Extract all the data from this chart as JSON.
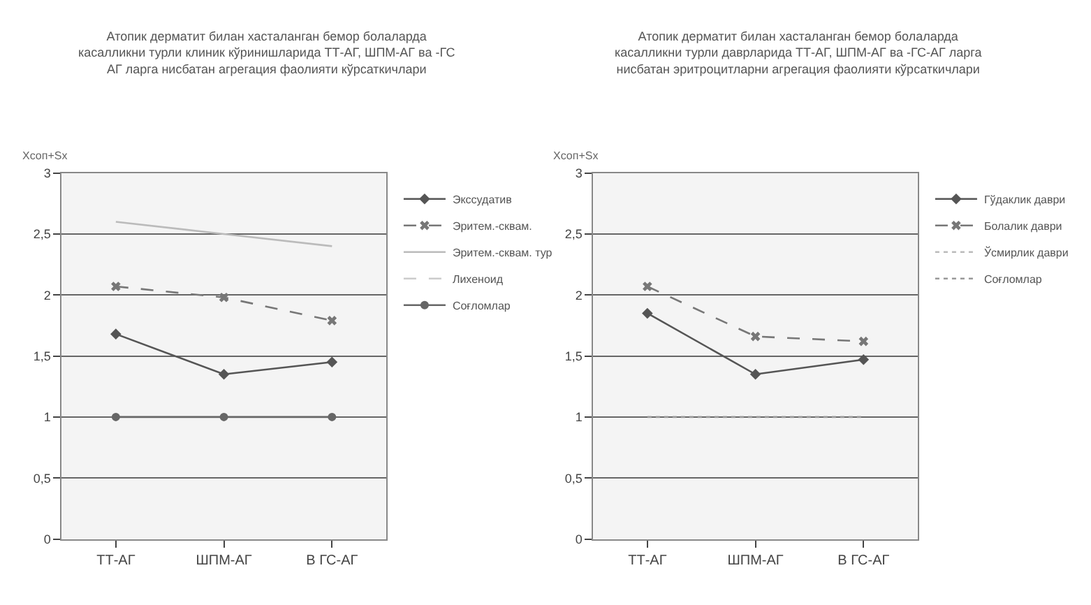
{
  "chart_data": [
    {
      "type": "line",
      "title": "Атопик дерматит билан хасталанган бемор болаларда\nкасалликни турли клиник кўринишларида ТТ-АГ, ШПМ-АГ ва -ГС\nАГ ларга нисбатан агрегация фаолияти кўрсаткичлари",
      "ylabel": "Хсоп+Sx",
      "categories": [
        "ТТ-АГ",
        "ШПМ-АГ",
        "В ГС-АГ"
      ],
      "ylim": [
        0,
        3
      ],
      "yticks": [
        0,
        {
          "value": 0.5,
          "label": "0,5"
        },
        1,
        {
          "value": 1.5,
          "label": "1,5"
        },
        2,
        {
          "value": 2.5,
          "label": "2,5"
        },
        3
      ],
      "grid": "y",
      "legend": "right",
      "series": [
        {
          "name": "Экссудатив",
          "color": "#555555",
          "values": [
            1.68,
            1.35,
            1.45
          ],
          "marker": "diamond",
          "line_style": "solid"
        },
        {
          "name": "Эритем.-сквам.",
          "color": "#777777",
          "values": [
            2.07,
            1.98,
            1.79
          ],
          "marker": "cross",
          "line_style": "dashed"
        },
        {
          "name": "Эритем.-сквам. тур",
          "color": "#bbbbbb",
          "values": [
            2.6,
            2.5,
            2.4
          ],
          "marker": "none",
          "line_style": "solid"
        },
        {
          "name": "Лихеноид",
          "color": "#cccccc",
          "values": [
            null,
            null,
            null
          ],
          "marker": "none",
          "line_style": "dashed"
        },
        {
          "name": "Соғломлар",
          "color": "#666666",
          "values": [
            1.0,
            1.0,
            1.0
          ],
          "marker": "circle",
          "line_style": "solid"
        }
      ]
    },
    {
      "type": "line",
      "title": "Атопик дерматит билан хасталанган бемор болаларда\nкасалликни турли даврларида ТТ-АГ, ШПМ-АГ ва -ГС-АГ ларга\nнисбатан эритроцитларни агрегация фаолияти кўрсаткичлари",
      "ylabel": "Хсоп+Sx",
      "categories": [
        "ТТ-АГ",
        "ШПМ-АГ",
        "В ГС-АГ"
      ],
      "ylim": [
        0,
        3
      ],
      "yticks": [
        0,
        {
          "value": 0.5,
          "label": "0,5"
        },
        1,
        {
          "value": 1.5,
          "label": "1,5"
        },
        2,
        {
          "value": 2.5,
          "label": "2,5"
        },
        3
      ],
      "grid": "y",
      "legend": "right",
      "series": [
        {
          "name": "Гўдаклик даври",
          "color": "#555555",
          "values": [
            1.85,
            1.35,
            1.47
          ],
          "marker": "diamond",
          "line_style": "solid"
        },
        {
          "name": "Болалик даври",
          "color": "#777777",
          "values": [
            2.07,
            1.66,
            1.62
          ],
          "marker": "cross",
          "line_style": "dashed"
        },
        {
          "name": "Ўсмирлик даври",
          "color": "#bbbbbb",
          "values": [
            null,
            null,
            null
          ],
          "marker": "none",
          "line_style": "dotted"
        },
        {
          "name": "Соғломлар",
          "color": "#999999",
          "values": [
            1.0,
            1.0,
            1.0
          ],
          "marker": "none",
          "line_style": "dotted"
        }
      ]
    }
  ]
}
